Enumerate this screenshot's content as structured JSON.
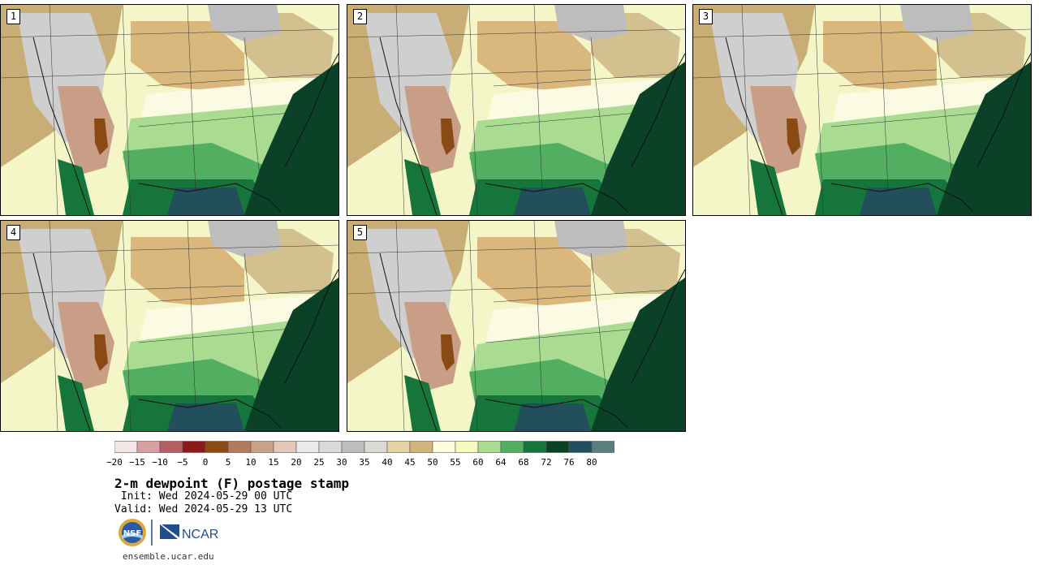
{
  "panels": [
    {
      "label": "1",
      "variant": 0
    },
    {
      "label": "2",
      "variant": 1
    },
    {
      "label": "3",
      "variant": 2
    },
    {
      "label": "4",
      "variant": 3
    },
    {
      "label": "5",
      "variant": 4
    }
  ],
  "colorbar": {
    "colors": [
      "#f4e6e6",
      "#d6a0a3",
      "#b45f64",
      "#8c1a1d",
      "#8a4a14",
      "#b07c5c",
      "#c9a189",
      "#e2c8b8",
      "#eaeaea",
      "#d9d9d9",
      "#bdbdbd",
      "#dadad2",
      "#e4d4a6",
      "#d2b57a",
      "#fffde0",
      "#f8f9bf",
      "#a9db91",
      "#52ae61",
      "#16753a",
      "#0b4127",
      "#234e5b",
      "#5a7e80"
    ],
    "tick_labels": [
      "−20",
      "−15",
      "−10",
      "−5",
      "0",
      "5",
      "10",
      "15",
      "20",
      "25",
      "30",
      "35",
      "40",
      "45",
      "50",
      "55",
      "60",
      "64",
      "68",
      "72",
      "76",
      "80"
    ]
  },
  "title": "2-m dewpoint (F) postage stamp",
  "init": " Init: Wed 2024-05-29 00 UTC",
  "valid": "Valid: Wed 2024-05-29 13 UTC",
  "logos": {
    "nsf_text": "NSF",
    "ncar_text": "NCAR"
  },
  "url": "ensemble.ucar.edu"
}
